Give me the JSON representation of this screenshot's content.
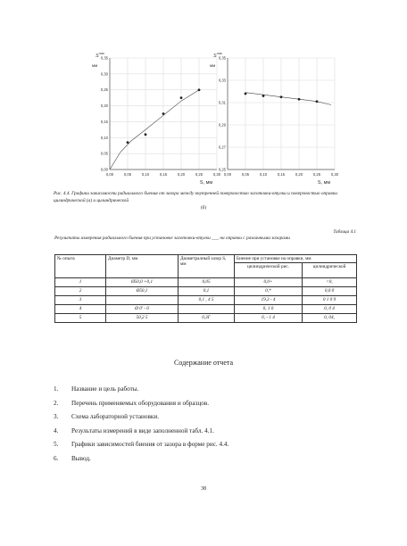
{
  "chart_data": [
    {
      "type": "scatter",
      "title": "",
      "ylabel_top": "S",
      "ylabel_top_sup": "max",
      "yunit": "мм",
      "xlabel": "S, мм",
      "xlim": [
        0,
        0.3
      ],
      "ylim": [
        0,
        0.35
      ],
      "xticks": [
        "0,00",
        "0,05",
        "0,10",
        "0,15",
        "0,20",
        "0,25",
        "0,30"
      ],
      "yticks": [
        "0,00",
        "0,05",
        "0,10",
        "0,15",
        "0,20",
        "0,25",
        "0,30",
        "0,35"
      ],
      "xtick_values": [
        0,
        0.05,
        0.1,
        0.15,
        0.2,
        0.25,
        0.3
      ],
      "ytick_values": [
        0,
        0.05,
        0.1,
        0.15,
        0.2,
        0.25,
        0.3,
        0.35
      ],
      "points": [
        {
          "x": 0.05,
          "y": 0.085
        },
        {
          "x": 0.1,
          "y": 0.11
        },
        {
          "x": 0.15,
          "y": 0.175
        },
        {
          "x": 0.2,
          "y": 0.225
        },
        {
          "x": 0.25,
          "y": 0.25
        }
      ],
      "curve": [
        {
          "x": 0.0,
          "y": 0.0
        },
        {
          "x": 0.03,
          "y": 0.055
        },
        {
          "x": 0.06,
          "y": 0.09
        },
        {
          "x": 0.1,
          "y": 0.125
        },
        {
          "x": 0.15,
          "y": 0.17
        },
        {
          "x": 0.2,
          "y": 0.215
        },
        {
          "x": 0.25,
          "y": 0.25
        }
      ]
    },
    {
      "type": "scatter",
      "title": "",
      "ylabel_top": "S",
      "ylabel_top_sup": "max",
      "yunit": "мм",
      "xlabel": "S, мм",
      "xlim": [
        0,
        0.3
      ],
      "ylim": [
        0.25,
        0.35
      ],
      "xticks": [
        "0,00",
        "0,05",
        "0,10",
        "0,15",
        "0,20",
        "0,25",
        "0,30"
      ],
      "yticks": [
        "0,25",
        "0,27",
        "0,29",
        "0,31",
        "0,33",
        "0,35"
      ],
      "xtick_values": [
        0,
        0.05,
        0.1,
        0.15,
        0.2,
        0.25,
        0.3
      ],
      "ytick_values": [
        0.25,
        0.27,
        0.29,
        0.31,
        0.33,
        0.35
      ],
      "points": [
        {
          "x": 0.05,
          "y": 0.318
        },
        {
          "x": 0.1,
          "y": 0.316
        },
        {
          "x": 0.15,
          "y": 0.315
        },
        {
          "x": 0.2,
          "y": 0.313
        },
        {
          "x": 0.25,
          "y": 0.311
        }
      ],
      "curve": [
        {
          "x": 0.05,
          "y": 0.319
        },
        {
          "x": 0.1,
          "y": 0.317
        },
        {
          "x": 0.15,
          "y": 0.315
        },
        {
          "x": 0.2,
          "y": 0.313
        },
        {
          "x": 0.25,
          "y": 0.311
        },
        {
          "x": 0.29,
          "y": 0.308
        }
      ]
    }
  ],
  "figure": {
    "caption": "Рис. 4.4. Графики зависимости радиального биения от зазора между внутренней поверхностью заготовки-втулки и поверхностью оправки цилиндрической (а) и цилиндрической",
    "caption_sub": "(б)"
  },
  "table": {
    "number": "Таблица 4.1",
    "title": "Результаты измерения радиального биения при установке заготовки-втулки ___ на оправки с различными зазорами",
    "headers": {
      "c1": "№ опыта",
      "c2": "Диаметр D, мм",
      "c3": "Диаметрал­ный зазор S, мм",
      "c4": "Биение при установке на оправки, мм",
      "c4a": "цилиндрической рис.",
      "c4b": "цилиндрической"
    },
    "rows": [
      [
        "1",
        "Ø50,0 +0,1",
        "0,05",
        "0,0+",
        "<0,"
      ],
      [
        "2",
        "Ø50,1",
        "0,1",
        "0,*",
        "0,0 0"
      ],
      [
        "3",
        "",
        "0,1 , 4 5",
        "19,3 - 4",
        "0 1 0 9"
      ],
      [
        "4",
        "Ø 0' - 0",
        "",
        "0, 1 0",
        "0, 0 4"
      ],
      [
        "5",
        "50,2 5",
        "0,3Г",
        "0, - 1 4",
        "0, 04,"
      ]
    ]
  },
  "report": {
    "title": "Содержание отчета",
    "items": [
      {
        "n": "1.",
        "text": "Название и цель работы."
      },
      {
        "n": "2.",
        "text": "Перечень применяемых оборудования и образцов."
      },
      {
        "n": "3.",
        "text": "Схема лабораторной установки."
      },
      {
        "n": "4.",
        "text": "Результаты измерений в виде заполненной табл. 4.1."
      },
      {
        "n": "5.",
        "text": "Графики зависимостей биения от зазора в форме рис. 4.4."
      },
      {
        "n": "6.",
        "text": "Вывод."
      }
    ]
  },
  "page_number": "38"
}
